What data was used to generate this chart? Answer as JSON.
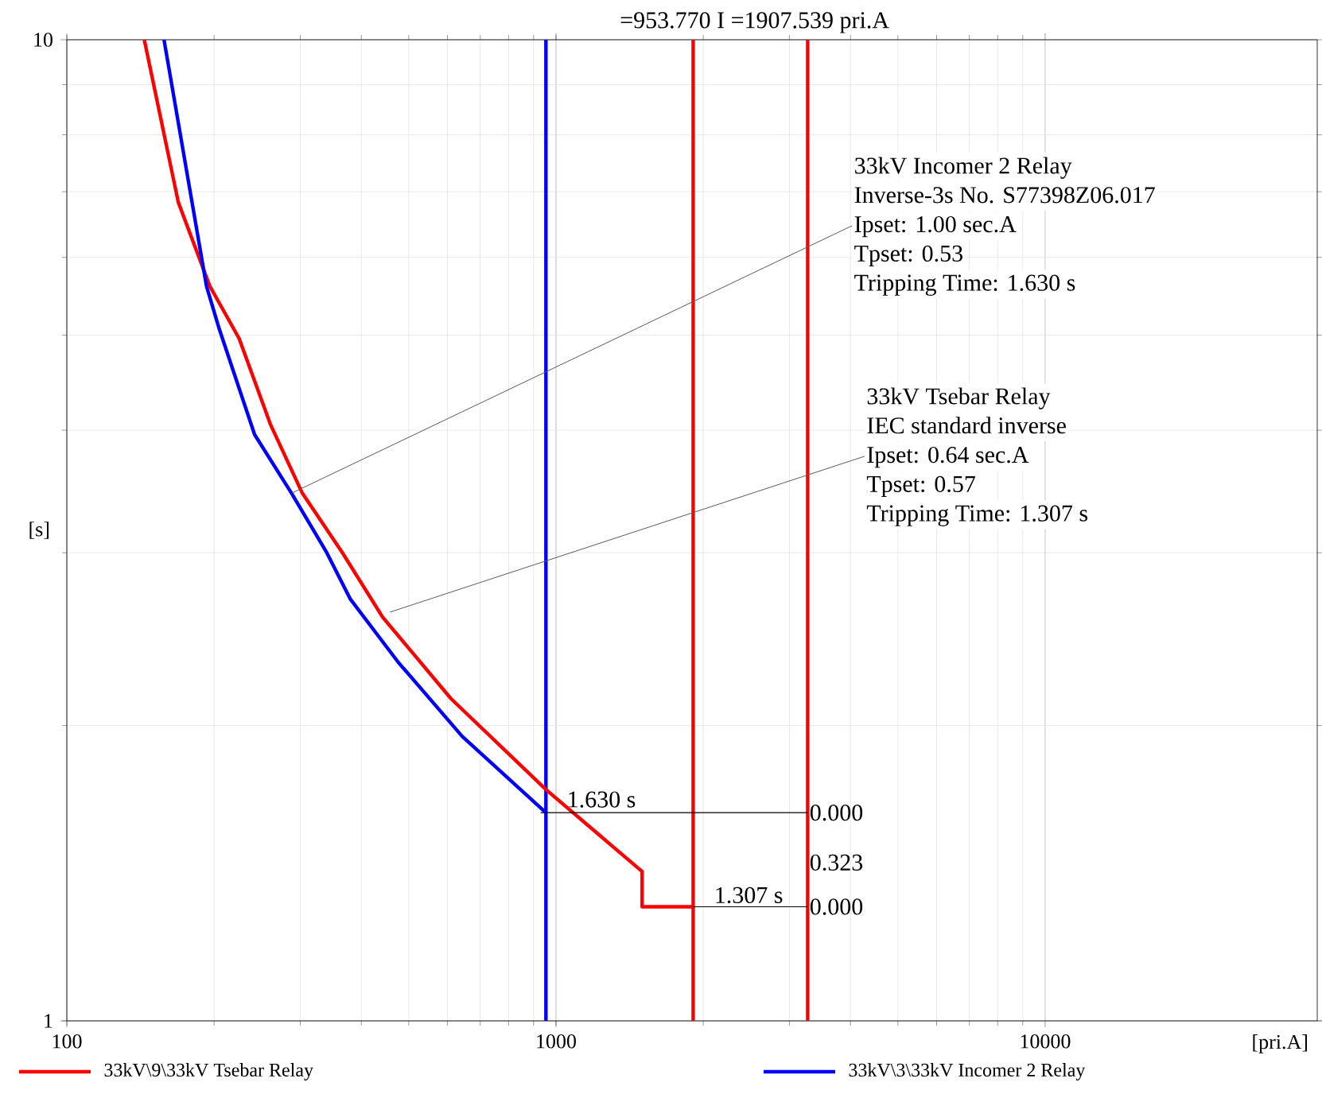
{
  "chart_data": {
    "type": "line",
    "title": "=953.770 I =1907.539 pri.A",
    "xlabel": "[pri.A]",
    "ylabel": "[s]",
    "log": "xy",
    "grid": true,
    "legend": "bottom",
    "xlim": [
      100,
      36000
    ],
    "ylim": [
      1,
      10
    ],
    "xticks": [
      100,
      1000,
      10000
    ],
    "yticks": [
      1,
      10
    ],
    "series": [
      {
        "name": "33kV\\9\\33kV Tsebar Relay",
        "color": "#ff0000",
        "x": [
          144,
          169,
          196,
          225,
          261,
          303,
          366,
          442,
          610,
          955,
          1500,
          1500,
          1907.539
        ],
        "values": [
          10,
          6.83,
          5.61,
          4.96,
          4.05,
          3.45,
          3.0,
          2.58,
          2.13,
          1.72,
          1.42,
          1.307,
          1.307
        ]
      },
      {
        "name": "33kV\\3\\33kV Incomer 2 Relay",
        "color": "#0000ff",
        "x": [
          158,
          193,
          205,
          242,
          288,
          340,
          380,
          476,
          643,
          953.77
        ],
        "values": [
          10,
          5.61,
          5.07,
          3.96,
          3.45,
          3.0,
          2.69,
          2.32,
          1.95,
          1.63
        ]
      },
      {
        "color": "#000000",
        "x": [
          930,
          3270
        ],
        "values": [
          1.63,
          1.63
        ]
      },
      {
        "color": "#000000",
        "x": [
          1907.539,
          3270
        ],
        "values": [
          1.307,
          1.307
        ]
      }
    ],
    "ref_lines": [
      {
        "axis": "x",
        "value": 953.77,
        "color": "#0000ff"
      },
      {
        "axis": "x",
        "value": 1907.539,
        "color": "#ff0000"
      },
      {
        "axis": "x",
        "value": 3270,
        "color": "#ff0000"
      }
    ],
    "annotations": [
      "33kV Incomer 2 Relay",
      "Inverse-3s No. S77398Z06.017",
      {
        "text": "Ipset: 1.00 sec.A",
        "x": 288,
        "y": 3.45
      },
      "Tpset: 0.53",
      "Tripping Time: 1.630 s",
      "33kV Tsebar Relay",
      "IEC standard inverse",
      {
        "text": "Ipset: 0.64 sec.A",
        "x": 458,
        "y": 2.61
      },
      "Tpset: 0.57",
      "Tripping Time: 1.307 s",
      {
        "text": "1.630 s",
        "x": 953.77,
        "y": 1.63
      },
      {
        "text": "1.307 s",
        "x": 1907.539,
        "y": 1.307
      },
      {
        "text": "0.000",
        "x": 3270,
        "y": 1.63
      },
      {
        "text": "0.323",
        "x": 3270,
        "y": 1.45
      },
      {
        "text": "0.000",
        "x": 3270,
        "y": 1.307
      }
    ]
  }
}
